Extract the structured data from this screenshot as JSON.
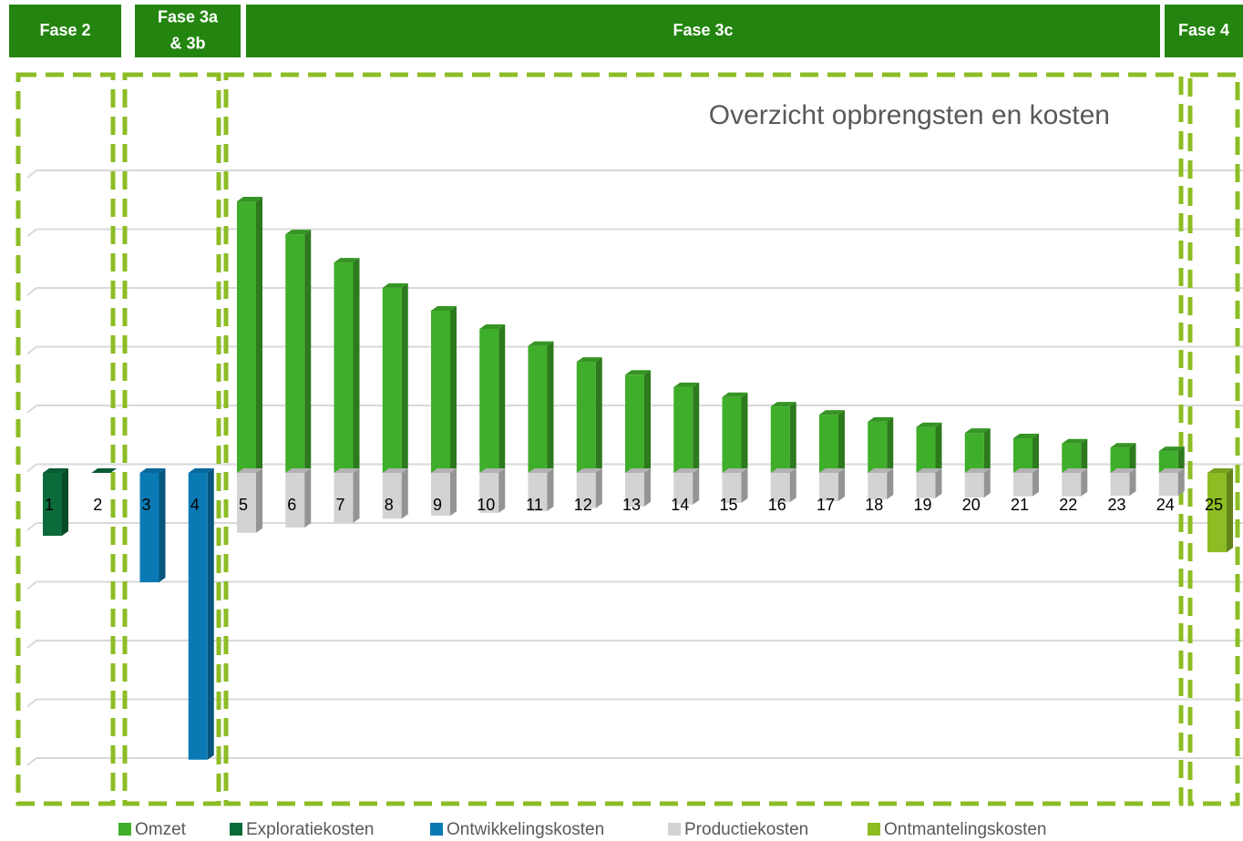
{
  "chart_data": {
    "type": "bar",
    "title": "Overzicht opbrengsten en kosten",
    "phases": [
      {
        "lines": [
          "Fase 2"
        ]
      },
      {
        "lines": [
          "Fase 3a",
          "& 3b"
        ]
      },
      {
        "lines": [
          "Fase 3c"
        ]
      },
      {
        "lines": [
          "Fase 4"
        ]
      }
    ],
    "categories": [
      "1",
      "2",
      "3",
      "4",
      "5",
      "6",
      "7",
      "8",
      "9",
      "10",
      "11",
      "12",
      "13",
      "14",
      "15",
      "16",
      "17",
      "18",
      "19",
      "20",
      "21",
      "22",
      "23",
      "24",
      "25"
    ],
    "series": [
      {
        "name": "Omzet",
        "color": "#3fae2a",
        "values": [
          null,
          null,
          null,
          null,
          4.62,
          4.06,
          3.58,
          3.15,
          2.76,
          2.45,
          2.16,
          1.89,
          1.67,
          1.46,
          1.29,
          1.13,
          0.99,
          0.87,
          0.78,
          0.68,
          0.59,
          0.5,
          0.43,
          0.37,
          null
        ]
      },
      {
        "name": "Exploratiekosten",
        "color": "#0b6b3a",
        "values": [
          -1.07,
          0,
          null,
          null,
          null,
          null,
          null,
          null,
          null,
          null,
          null,
          null,
          null,
          null,
          null,
          null,
          null,
          null,
          null,
          null,
          null,
          null,
          null,
          null,
          null
        ]
      },
      {
        "name": "Ontwikkelingskosten",
        "color": "#0a7ab5",
        "values": [
          null,
          null,
          -1.86,
          -4.88,
          null,
          null,
          null,
          null,
          null,
          null,
          null,
          null,
          null,
          null,
          null,
          null,
          null,
          null,
          null,
          null,
          null,
          null,
          null,
          null,
          null
        ]
      },
      {
        "name": "Productiekosten",
        "color": "#d3d3d3",
        "values": [
          null,
          null,
          null,
          null,
          -1.02,
          -0.93,
          -0.85,
          -0.78,
          -0.73,
          -0.68,
          -0.65,
          -0.6,
          -0.57,
          -0.54,
          -0.51,
          -0.5,
          -0.48,
          -0.45,
          -0.43,
          -0.42,
          -0.4,
          -0.4,
          -0.39,
          -0.39,
          null
        ]
      },
      {
        "name": "Ontmantelingskosten",
        "color": "#8cbd24",
        "values": [
          null,
          null,
          null,
          null,
          null,
          null,
          null,
          null,
          null,
          null,
          null,
          null,
          null,
          null,
          null,
          null,
          null,
          null,
          null,
          null,
          null,
          null,
          null,
          null,
          -1.35
        ]
      }
    ],
    "ylim": [
      -5,
      5
    ],
    "yticks": [
      -5,
      -4,
      -3,
      -2,
      -1,
      0,
      1,
      2,
      3,
      4,
      5
    ],
    "grid": true,
    "legend": "bottom",
    "stacked": true
  }
}
